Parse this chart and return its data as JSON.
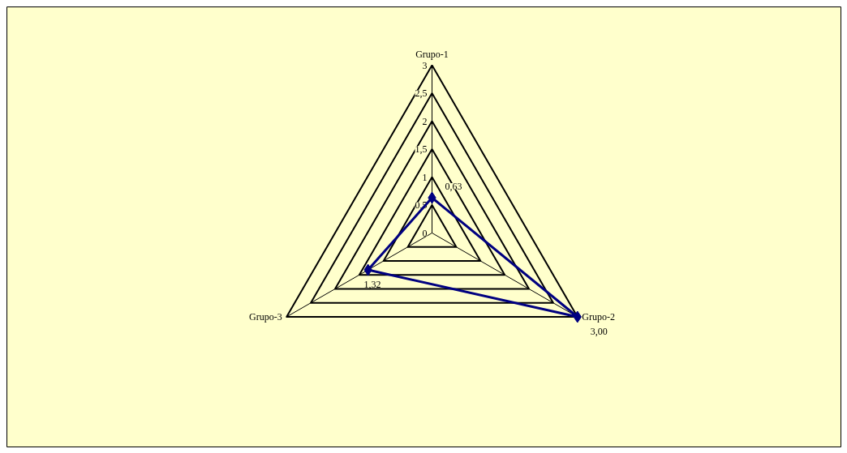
{
  "chart_data": {
    "type": "radar",
    "categories": [
      "Grupo-1",
      "Grupo-2",
      "Grupo-3"
    ],
    "series": [
      {
        "color": "#000080",
        "values": [
          0.63,
          3.0,
          1.32
        ],
        "value_labels": [
          "0,63",
          "3,00",
          "1,32"
        ]
      }
    ],
    "ylim": [
      0,
      3
    ],
    "yticks": [
      0,
      {
        "value": 0.5,
        "label": "0,5"
      },
      1,
      {
        "value": 1.5,
        "label": "1,5"
      },
      2,
      {
        "value": 2.5,
        "label": "2,5"
      },
      3
    ],
    "grid": true,
    "marker": "diamond",
    "line_style": "solid"
  }
}
